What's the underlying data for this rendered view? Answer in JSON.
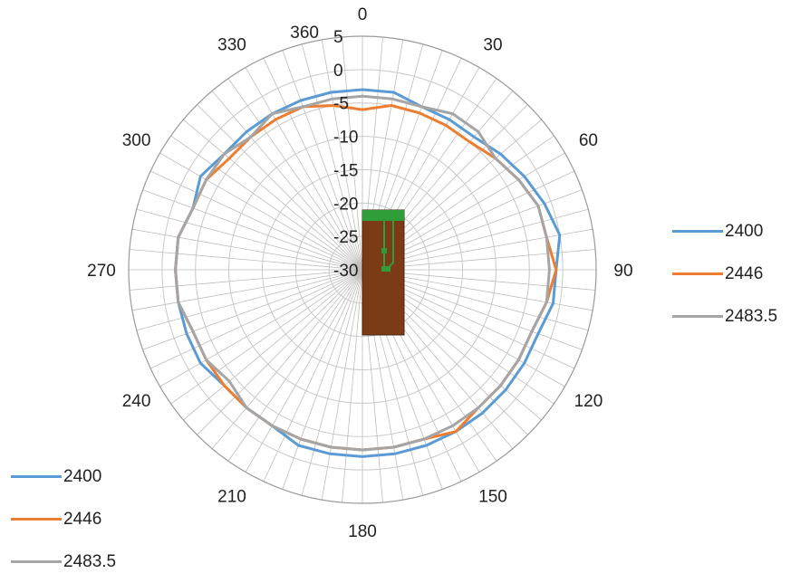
{
  "chart_data": {
    "type": "polar-line",
    "angle_ticks": [
      "0",
      "30",
      "60",
      "90",
      "120",
      "150",
      "180",
      "210",
      "240",
      "270",
      "300",
      "330",
      "360"
    ],
    "radial_ticks": [
      "5",
      "0",
      "-5",
      "-10",
      "-15",
      "-20",
      "-25",
      "-30"
    ],
    "radial_range": [
      -30,
      5
    ],
    "angle_step_deg": 5,
    "grid": true,
    "legend_placement": "right and bottom-left",
    "series": [
      {
        "name": "2400",
        "color": "#5b9bd5",
        "angles": [
          0,
          10,
          20,
          30,
          40,
          50,
          60,
          70,
          80,
          90,
          100,
          110,
          120,
          130,
          140,
          150,
          160,
          170,
          180,
          190,
          200,
          210,
          220,
          230,
          240,
          250,
          260,
          270,
          280,
          290,
          300,
          310,
          320,
          330,
          340,
          350
        ],
        "values": [
          -3,
          -3,
          -4,
          -4,
          -4,
          -3,
          -2,
          -1,
          0,
          -1,
          -1,
          -2,
          -2,
          -2,
          -2,
          -2,
          -2,
          -2,
          -2,
          -2,
          -2,
          -3,
          -3,
          -3,
          -2,
          -2,
          -2,
          -2,
          -2,
          -3,
          -2,
          -3,
          -3,
          -3,
          -3,
          -3
        ]
      },
      {
        "name": "2446",
        "color": "#ed7d31",
        "angles": [
          0,
          10,
          20,
          30,
          40,
          50,
          60,
          70,
          80,
          90,
          100,
          110,
          120,
          130,
          140,
          150,
          160,
          170,
          180,
          190,
          200,
          210,
          220,
          230,
          240,
          250,
          260,
          270,
          280,
          290,
          300,
          310,
          320,
          330,
          340,
          350
        ],
        "values": [
          -6,
          -5,
          -5,
          -5,
          -5,
          -4,
          -3,
          -2,
          -2,
          -1,
          -2,
          -3,
          -3,
          -3,
          -3,
          -2,
          -3,
          -3,
          -3,
          -3,
          -3,
          -3,
          -3,
          -3,
          -3,
          -3,
          -2,
          -2,
          -2,
          -3,
          -3,
          -4,
          -4,
          -4,
          -4,
          -5
        ]
      },
      {
        "name": "2483.5",
        "color": "#a5a5a5",
        "angles": [
          0,
          10,
          20,
          30,
          40,
          50,
          60,
          70,
          80,
          90,
          100,
          110,
          120,
          130,
          140,
          150,
          160,
          170,
          180,
          190,
          200,
          210,
          220,
          230,
          240,
          250,
          260,
          270,
          280,
          290,
          300,
          310,
          320,
          330,
          340,
          350
        ],
        "values": [
          -4,
          -4,
          -4,
          -3,
          -3,
          -4,
          -3,
          -2,
          -2,
          -2,
          -2,
          -3,
          -3,
          -3,
          -3,
          -3,
          -3,
          -3,
          -3,
          -3,
          -3,
          -3,
          -3,
          -4,
          -3,
          -3,
          -2,
          -2,
          -2,
          -3,
          -3,
          -3,
          -4,
          -3,
          -4,
          -4
        ]
      }
    ]
  },
  "legend_right": [
    {
      "label": "2400",
      "color": "#5b9bd5"
    },
    {
      "label": "2446",
      "color": "#ed7d31"
    },
    {
      "label": "2483.5",
      "color": "#a5a5a5"
    }
  ],
  "legend_bottom": [
    {
      "label": "2400",
      "color": "#5b9bd5"
    },
    {
      "label": "2446",
      "color": "#ed7d31"
    },
    {
      "label": "2483.5",
      "color": "#a5a5a5"
    }
  ],
  "center_image": {
    "board_color": "#7a3b16",
    "trace_color": "#2e9d3a"
  }
}
